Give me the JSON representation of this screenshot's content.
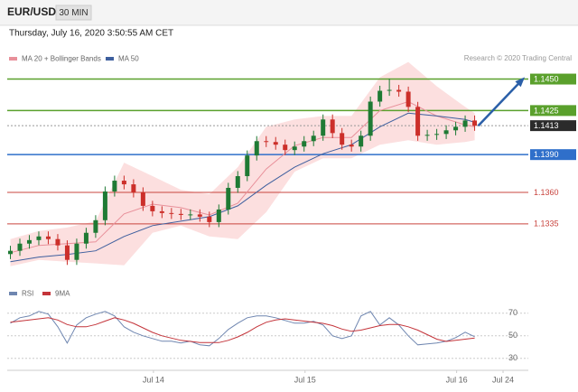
{
  "header": {
    "symbol": "EUR/USD",
    "interval": "30 MIN",
    "date": "Thursday, July 16, 2020 3:50:55 AM CET",
    "source": "Research © 2020 Trading Central"
  },
  "chart_data": [
    {
      "type": "candlestick",
      "xlim": [
        0,
        165
      ],
      "ylim": [
        1.1294,
        1.1459
      ],
      "candles": {
        "x": [
          1,
          4,
          7,
          10,
          13,
          16,
          19,
          22,
          25,
          28,
          31,
          34,
          37,
          40,
          43,
          46,
          49,
          52,
          55,
          58,
          61,
          64,
          67,
          70,
          73,
          76,
          79,
          82,
          85,
          88,
          91,
          94,
          97,
          100,
          103,
          106,
          109,
          112,
          115,
          118,
          121,
          124,
          127,
          130,
          133,
          136,
          139,
          142,
          145,
          148
        ],
        "open": [
          1.1311,
          1.13136,
          1.13193,
          1.13221,
          1.1325,
          1.13229,
          1.13179,
          1.13064,
          1.13193,
          1.13279,
          1.13379,
          1.13607,
          1.13693,
          1.13664,
          1.136,
          1.13493,
          1.1345,
          1.13436,
          1.13429,
          1.13421,
          1.13425,
          1.13407,
          1.13364,
          1.13464,
          1.13636,
          1.13729,
          1.13893,
          1.14007,
          1.14,
          1.13979,
          1.13936,
          1.13964,
          1.14007,
          1.1405,
          1.14179,
          1.14071,
          1.13979,
          1.13964,
          1.1405,
          1.14321,
          1.14407,
          1.14414,
          1.144,
          1.14279,
          1.1405,
          1.14057,
          1.14064,
          1.14093,
          1.14121,
          1.14171
        ],
        "high": [
          1.13176,
          1.13233,
          1.13261,
          1.1329,
          1.1329,
          1.13269,
          1.13219,
          1.13233,
          1.13319,
          1.13419,
          1.13647,
          1.13733,
          1.13733,
          1.13704,
          1.1364,
          1.13533,
          1.1349,
          1.13476,
          1.13469,
          1.13465,
          1.13465,
          1.13447,
          1.13504,
          1.13676,
          1.13769,
          1.13933,
          1.14047,
          1.14047,
          1.1404,
          1.14019,
          1.14004,
          1.14047,
          1.1409,
          1.14219,
          1.14219,
          1.14111,
          1.14019,
          1.1409,
          1.14361,
          1.14447,
          1.14504,
          1.14454,
          1.1444,
          1.14319,
          1.14097,
          1.14104,
          1.14133,
          1.14161,
          1.14211,
          1.14211
        ],
        "low": [
          1.1307,
          1.13096,
          1.13153,
          1.13181,
          1.13189,
          1.13139,
          1.13024,
          1.13024,
          1.13153,
          1.13239,
          1.13339,
          1.13567,
          1.13624,
          1.1356,
          1.13453,
          1.1341,
          1.13396,
          1.13389,
          1.13381,
          1.13381,
          1.13367,
          1.13324,
          1.13324,
          1.13424,
          1.13596,
          1.13689,
          1.13853,
          1.1396,
          1.13939,
          1.13896,
          1.13896,
          1.13924,
          1.13967,
          1.1401,
          1.14031,
          1.13939,
          1.13924,
          1.13924,
          1.1401,
          1.14281,
          1.14367,
          1.1436,
          1.14239,
          1.1401,
          1.1401,
          1.14017,
          1.14024,
          1.14053,
          1.14081,
          1.14089
        ],
        "close": [
          1.13136,
          1.13193,
          1.13221,
          1.1325,
          1.13229,
          1.13179,
          1.13064,
          1.13193,
          1.13279,
          1.13379,
          1.13607,
          1.13693,
          1.13664,
          1.136,
          1.13493,
          1.1345,
          1.13436,
          1.13429,
          1.13421,
          1.13425,
          1.13407,
          1.13364,
          1.13464,
          1.13636,
          1.13729,
          1.13893,
          1.14007,
          1.14,
          1.13979,
          1.13936,
          1.13964,
          1.14007,
          1.1405,
          1.14179,
          1.14071,
          1.13979,
          1.13964,
          1.1405,
          1.14321,
          1.14407,
          1.14414,
          1.144,
          1.14279,
          1.1405,
          1.14057,
          1.14064,
          1.14093,
          1.14121,
          1.14171,
          1.14129
        ],
        "up_color": "#1f7a34",
        "down_color": "#cc2f2a"
      },
      "x": [
        1,
        10,
        19,
        28,
        37,
        46,
        55,
        64,
        73,
        82,
        91,
        100,
        109,
        118,
        127,
        136,
        145,
        148
      ],
      "series": [
        {
          "name": "MA 20 + Bollinger Bands",
          "color": "#e8909a",
          "band_color": "#fcd9d9",
          "values": [
            1.13121,
            1.13179,
            1.13193,
            1.13207,
            1.13429,
            1.13507,
            1.13479,
            1.13421,
            1.13514,
            1.13786,
            1.13971,
            1.14036,
            1.14036,
            1.1425,
            1.14321,
            1.14207,
            1.14136,
            1.14121
          ],
          "upper": [
            1.13229,
            1.13293,
            1.13321,
            1.13371,
            1.13836,
            1.13729,
            1.13621,
            1.13586,
            1.138,
            1.14121,
            1.14179,
            1.14207,
            1.14207,
            1.14514,
            1.14636,
            1.14443,
            1.14279,
            1.14229
          ],
          "lower": [
            1.13014,
            1.13064,
            1.1305,
            1.13036,
            1.13021,
            1.13279,
            1.13336,
            1.1325,
            1.13229,
            1.13443,
            1.13764,
            1.13871,
            1.13871,
            1.13979,
            1.14014,
            1.13979,
            1.14,
            1.14014
          ]
        },
        {
          "name": "MA 50",
          "color": "#3e5f9e",
          "values": [
            1.1305,
            1.13086,
            1.13107,
            1.13136,
            1.1325,
            1.13336,
            1.13371,
            1.13407,
            1.13493,
            1.13657,
            1.138,
            1.13907,
            1.13979,
            1.14121,
            1.14229,
            1.14207,
            1.14179,
            1.14157
          ]
        }
      ],
      "levels": [
        {
          "value": 1.145,
          "label": "1.1450",
          "color": "#5aa02c",
          "boxed": true
        },
        {
          "value": 1.1425,
          "label": "1.1425",
          "color": "#5aa02c",
          "boxed": true
        },
        {
          "value": 1.1413,
          "label": "1.1413",
          "color": "#2b2b2b",
          "boxed": true
        },
        {
          "value": 1.139,
          "label": "1.1390",
          "color": "#2f6fca",
          "boxed": true
        },
        {
          "value": 1.136,
          "label": "1.1360",
          "color": "#c9453f",
          "boxed": false
        },
        {
          "value": 1.1335,
          "label": "1.1335",
          "color": "#c9453f",
          "boxed": false
        }
      ],
      "arrow_color": "#2b5fa8"
    },
    {
      "type": "line",
      "xlim": [
        0,
        165
      ],
      "ylim": [
        21,
        93
      ],
      "yticks": [
        30,
        50,
        70
      ],
      "xticks": [
        {
          "value": 46.3,
          "label": "Jul 14"
        },
        {
          "value": 94.3,
          "label": "Jul 15"
        },
        {
          "value": 142.3,
          "label": "Jul 16"
        },
        {
          "value": 157,
          "label": "Jul 24"
        }
      ],
      "x": [
        1,
        4,
        7,
        10,
        13,
        16,
        19,
        22,
        25,
        28,
        31,
        34,
        37,
        40,
        43,
        46,
        49,
        52,
        55,
        58,
        61,
        64,
        67,
        70,
        73,
        76,
        79,
        82,
        85,
        88,
        91,
        94,
        97,
        100,
        103,
        106,
        109,
        112,
        115,
        118,
        121,
        124,
        127,
        130,
        133,
        136,
        139,
        142,
        145,
        148
      ],
      "series": [
        {
          "name": "RSI",
          "color": "#6f86b0",
          "values": [
            61.2,
            66,
            67.6,
            71.6,
            69.2,
            58,
            43.6,
            59.6,
            66,
            69.2,
            71.6,
            67.6,
            58,
            53.2,
            50,
            47.6,
            45.2,
            45.2,
            43.6,
            45.2,
            42,
            41.2,
            47.6,
            55.6,
            61.2,
            66,
            67.6,
            67.6,
            66,
            63.6,
            61.2,
            61.2,
            62.8,
            59.6,
            50,
            47.6,
            50,
            67.6,
            71.6,
            59.6,
            66,
            59.6,
            50,
            42,
            42.8,
            43.6,
            45.2,
            48.4,
            53.2,
            49.2
          ]
        },
        {
          "name": "9MA",
          "color": "#c4343a",
          "values": [
            62,
            63,
            64,
            65,
            66,
            64,
            60,
            58,
            58,
            60,
            63,
            66,
            64,
            61,
            57,
            53,
            50,
            48,
            46,
            45,
            44,
            44,
            44,
            46,
            49,
            53,
            58,
            62,
            64,
            65,
            64,
            63,
            62,
            61,
            59,
            56,
            54,
            55,
            57,
            59,
            60,
            60,
            58,
            55,
            51,
            47,
            45,
            46,
            47,
            48
          ]
        }
      ]
    }
  ]
}
